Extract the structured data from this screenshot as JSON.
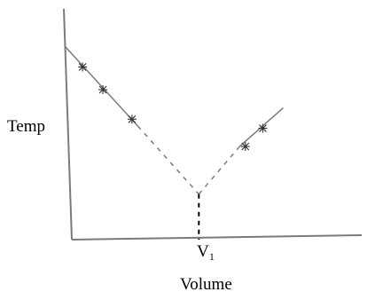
{
  "chart_data": {
    "type": "line",
    "title": "",
    "xlabel": "Volume",
    "ylabel": "Temp",
    "x_tick_label": "V₁",
    "xlim": [
      0,
      10
    ],
    "ylim": [
      0,
      10
    ],
    "grid": false,
    "legend": "none",
    "line_color": "#7a7a7a",
    "axis_color": "#7a7a7a",
    "series": [
      {
        "solid": [
          [
            -0.2,
            8.5
          ],
          [
            2.3,
            5.0
          ]
        ],
        "dashed": [
          [
            2.3,
            5.0
          ],
          [
            4.4,
            2.0
          ]
        ],
        "points": [
          [
            0.4,
            7.6
          ],
          [
            1.1,
            6.6
          ],
          [
            2.1,
            5.3
          ]
        ]
      },
      {
        "solid": [
          [
            5.8,
            4.1
          ],
          [
            7.3,
            5.8
          ]
        ],
        "dashed": [
          [
            4.4,
            2.0
          ],
          [
            5.8,
            4.1
          ]
        ],
        "points": [
          [
            6.0,
            4.1
          ],
          [
            6.6,
            4.9
          ]
        ]
      }
    ],
    "dashed_drop": [
      [
        4.4,
        2.0
      ],
      [
        4.4,
        0
      ]
    ]
  }
}
